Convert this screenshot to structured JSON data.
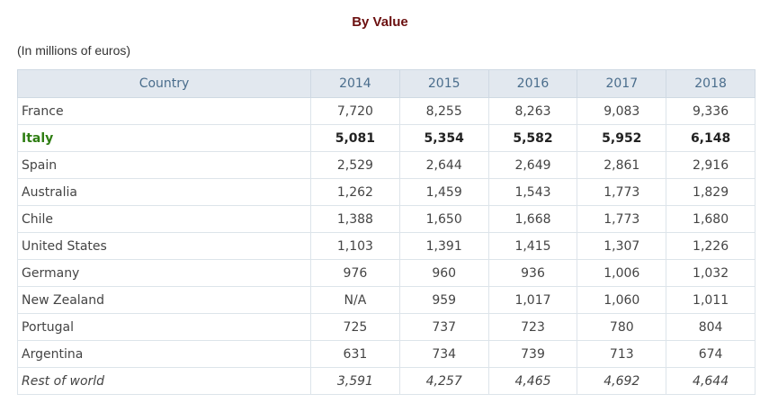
{
  "title": "By Value",
  "subtitle": "(In millions of euros)",
  "columns": [
    "Country",
    "2014",
    "2015",
    "2016",
    "2017",
    "2018"
  ],
  "rows": [
    {
      "country": "France",
      "values": [
        "7,720",
        "8,255",
        "8,263",
        "9,083",
        "9,336"
      ],
      "style": ""
    },
    {
      "country": "Italy",
      "values": [
        "5,081",
        "5,354",
        "5,582",
        "5,952",
        "6,148"
      ],
      "style": "highlight"
    },
    {
      "country": "Spain",
      "values": [
        "2,529",
        "2,644",
        "2,649",
        "2,861",
        "2,916"
      ],
      "style": ""
    },
    {
      "country": "Australia",
      "values": [
        "1,262",
        "1,459",
        "1,543",
        "1,773",
        "1,829"
      ],
      "style": ""
    },
    {
      "country": "Chile",
      "values": [
        "1,388",
        "1,650",
        "1,668",
        "1,773",
        "1,680"
      ],
      "style": ""
    },
    {
      "country": "United States",
      "values": [
        "1,103",
        "1,391",
        "1,415",
        "1,307",
        "1,226"
      ],
      "style": ""
    },
    {
      "country": "Germany",
      "values": [
        "976",
        "960",
        "936",
        "1,006",
        "1,032"
      ],
      "style": ""
    },
    {
      "country": "New Zealand",
      "values": [
        "N/A",
        "959",
        "1,017",
        "1,060",
        "1,011"
      ],
      "style": ""
    },
    {
      "country": "Portugal",
      "values": [
        "725",
        "737",
        "723",
        "780",
        "804"
      ],
      "style": ""
    },
    {
      "country": "Argentina",
      "values": [
        "631",
        "734",
        "739",
        "713",
        "674"
      ],
      "style": ""
    },
    {
      "country": "Rest of world",
      "values": [
        "3,591",
        "4,257",
        "4,465",
        "4,692",
        "4,644"
      ],
      "style": "italic"
    }
  ]
}
